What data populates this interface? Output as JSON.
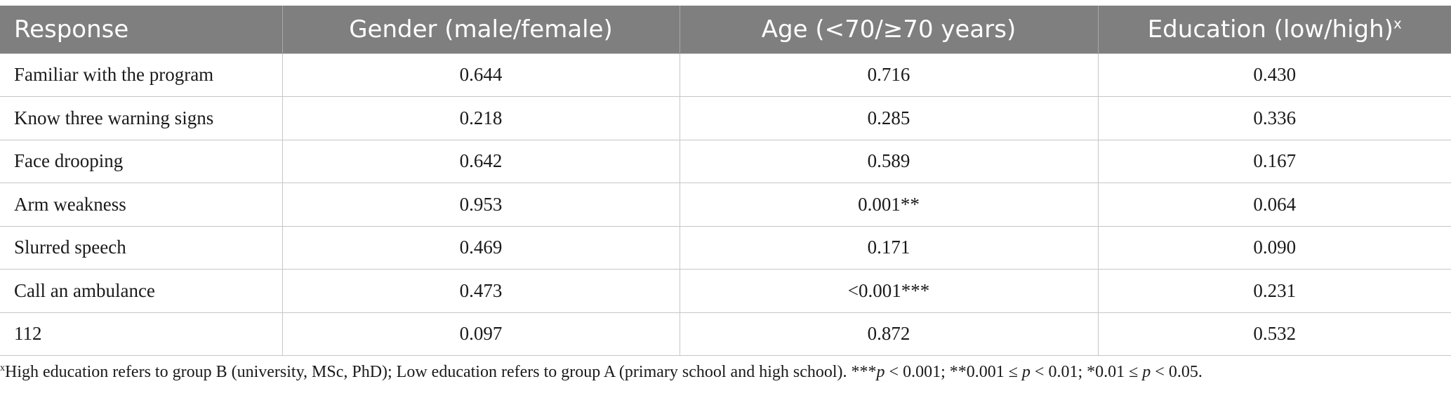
{
  "table": {
    "headers": [
      "Response",
      "Gender (male/female)",
      "Age (<70/≥70 years)",
      "Education (low/high)"
    ],
    "header_footnote_marker": "x",
    "rows": [
      [
        "Familiar with the program",
        "0.644",
        "0.716",
        "0.430"
      ],
      [
        "Know three warning signs",
        "0.218",
        "0.285",
        "0.336"
      ],
      [
        "Face drooping",
        "0.642",
        "0.589",
        "0.167"
      ],
      [
        "Arm weakness",
        "0.953",
        "0.001**",
        "0.064"
      ],
      [
        "Slurred speech",
        "0.469",
        "0.171",
        "0.090"
      ],
      [
        "Call an ambulance",
        "0.473",
        "<0.001***",
        "0.231"
      ],
      [
        "112",
        "0.097",
        "0.872",
        "0.532"
      ]
    ]
  },
  "footnote": {
    "marker": "x",
    "text_1": "High education refers to group B (university, MSc, PhD); Low education refers to group A (primary school and high school). ***",
    "p1": "p",
    "text_2": " < 0.001; **0.001 ≤ ",
    "p2": "p",
    "text_3": " < 0.01; *0.01 ≤ ",
    "p3": "p",
    "text_4": " < 0.05."
  },
  "colors": {
    "header_background": "#7f7f7f",
    "header_text": "#ffffff",
    "grid_lines": "#c6c6c6",
    "body_text": "#1a1a1a"
  }
}
